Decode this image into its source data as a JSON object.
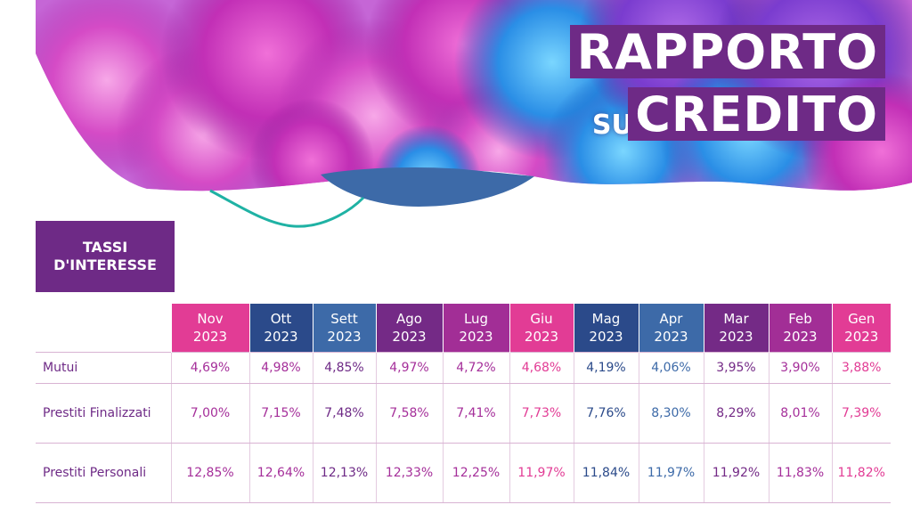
{
  "banner": {
    "title_line1": "RAPPORTO",
    "title_sul": "SUL",
    "title_line2": "CREDITO"
  },
  "section": {
    "line1": "TASSI",
    "line2": "D'INTERESSE"
  },
  "colors": {
    "purple": "#6e2a86",
    "pink": "#e23c95",
    "navy": "#2e4f8e",
    "slate": "#3e6aa6",
    "plum": "#7a2a83",
    "magenta": "#a52f9a"
  },
  "table": {
    "columns": [
      {
        "month": "Nov",
        "year": "2023",
        "bg": "#e23c95",
        "fg": "#a52f9a"
      },
      {
        "month": "Ott",
        "year": "2023",
        "bg": "#2b4a8a",
        "fg": "#a52f9a"
      },
      {
        "month": "Sett",
        "year": "2023",
        "bg": "#3d6aa8",
        "fg": "#6e2a86"
      },
      {
        "month": "Ago",
        "year": "2023",
        "bg": "#742a86",
        "fg": "#a52f9a"
      },
      {
        "month": "Lug",
        "year": "2023",
        "bg": "#a22e96",
        "fg": "#a52f9a"
      },
      {
        "month": "Giu",
        "year": "2023",
        "bg": "#e23c95",
        "fg": "#e23c95"
      },
      {
        "month": "Mag",
        "year": "2023",
        "bg": "#2b4a8a",
        "fg": "#2b4a8a"
      },
      {
        "month": "Apr",
        "year": "2023",
        "bg": "#3d6aa8",
        "fg": "#3d6aa8"
      },
      {
        "month": "Mar",
        "year": "2023",
        "bg": "#742a86",
        "fg": "#742a86"
      },
      {
        "month": "Feb",
        "year": "2023",
        "bg": "#a22e96",
        "fg": "#a52f9a"
      },
      {
        "month": "Gen",
        "year": "2023",
        "bg": "#e23c95",
        "fg": "#e23c95"
      }
    ],
    "rows": [
      {
        "label": "Mutui",
        "values": [
          "4,69%",
          "4,98%",
          "4,85%",
          "4,97%",
          "4,72%",
          "4,68%",
          "4,19%",
          "4,06%",
          "3,95%",
          "3,90%",
          "3,88%"
        ]
      },
      {
        "label": "Prestiti Finalizzati",
        "values": [
          "7,00%",
          "7,15%",
          "7,48%",
          "7,58%",
          "7,41%",
          "7,73%",
          "7,76%",
          "8,30%",
          "8,29%",
          "8,01%",
          "7,39%"
        ]
      },
      {
        "label": "Prestiti Personali",
        "values": [
          "12,85%",
          "12,64%",
          "12,13%",
          "12,33%",
          "12,25%",
          "11,97%",
          "11,84%",
          "11,97%",
          "11,92%",
          "11,83%",
          "11,82%"
        ]
      }
    ]
  }
}
